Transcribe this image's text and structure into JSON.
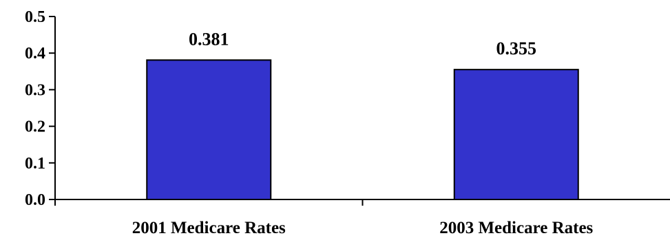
{
  "chart_data": {
    "type": "bar",
    "categories": [
      "2001 Medicare Rates",
      "2003 Medicare Rates"
    ],
    "values": [
      0.381,
      0.355
    ],
    "data_labels": [
      "0.381",
      "0.355"
    ],
    "y_ticks": [
      "0.0",
      "0.1",
      "0.2",
      "0.3",
      "0.4",
      "0.5"
    ],
    "ylim": [
      0,
      0.5
    ],
    "title": "",
    "xlabel": "",
    "ylabel": "",
    "grid": false,
    "legend": "none",
    "bar_color": "#3333CC"
  }
}
